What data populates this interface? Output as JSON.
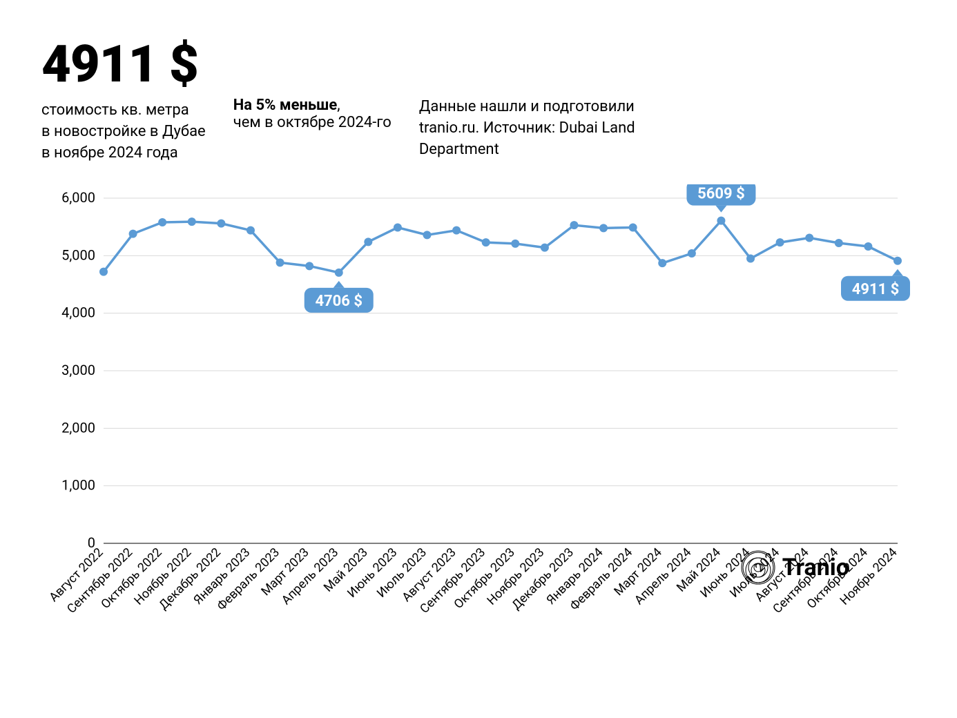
{
  "header": {
    "big_number": "4911 $",
    "sub1_l1": "стоимость кв. метра",
    "sub1_l2": "в новостройке в Дубае",
    "sub1_l3": "в ноябре 2024 года",
    "col2_bold": "На 5% меньше",
    "col2_rest": "чем в октябре 2024-го",
    "col3_l1": "Данные нашли и подготовили",
    "col3_l2": "tranio.ru. Источник: Dubai Land",
    "col3_l3": "Department"
  },
  "chart": {
    "type": "line",
    "line_color": "#5b9bd5",
    "marker_color": "#5b9bd5",
    "marker_radius": 6,
    "line_width": 3.5,
    "grid_color": "#d9d9d9",
    "axis_color": "#000000",
    "background_color": "#ffffff",
    "callout_bg": "#5b9bd5",
    "callout_text_color": "#ffffff",
    "callout_fontsize": 22,
    "y": {
      "min": 0,
      "max": 6000,
      "ticks": [
        0,
        1000,
        2000,
        3000,
        4000,
        5000,
        6000
      ],
      "tick_labels": [
        "0",
        "1,000",
        "2,000",
        "3,000",
        "4,000",
        "5,000",
        "6,000"
      ],
      "label_fontsize": 20
    },
    "x": {
      "labels": [
        "Август 2022",
        "Сентябрь 2022",
        "Октябрь 2022",
        "Ноябрь 2022",
        "Декабрь 2022",
        "Январь 2023",
        "Февраль 2023",
        "Март 2023",
        "Апрель 2023",
        "Май 2023",
        "Июнь 2023",
        "Июль 2023",
        "Август 2023",
        "Сентябрь 2023",
        "Октябрь 2023",
        "Ноябрь 2023",
        "Декабрь 2023",
        "Январь 2024",
        "Февраль 2024",
        "Март 2024",
        "Апрель 2024",
        "Май 2024",
        "Июнь 2024",
        "Июль 2024",
        "Август 2024",
        "Сентябрь 2024",
        "Октябрь 2024",
        "Ноябрь 2024"
      ],
      "label_fontsize": 18,
      "rotation_deg": -45
    },
    "values": [
      4720,
      5380,
      5580,
      5590,
      5560,
      5440,
      4880,
      4820,
      4706,
      5240,
      5490,
      5360,
      5440,
      5230,
      5210,
      5140,
      5530,
      5480,
      5490,
      4870,
      5040,
      5609,
      4950,
      5230,
      5310,
      5220,
      5160,
      4911
    ],
    "callouts": [
      {
        "index": 8,
        "label": "4706 $",
        "position": "below"
      },
      {
        "index": 21,
        "label": "5609 $",
        "position": "above"
      },
      {
        "index": 27,
        "label": "4911 $",
        "position": "below"
      }
    ]
  },
  "logo": {
    "text": "Tranio"
  }
}
